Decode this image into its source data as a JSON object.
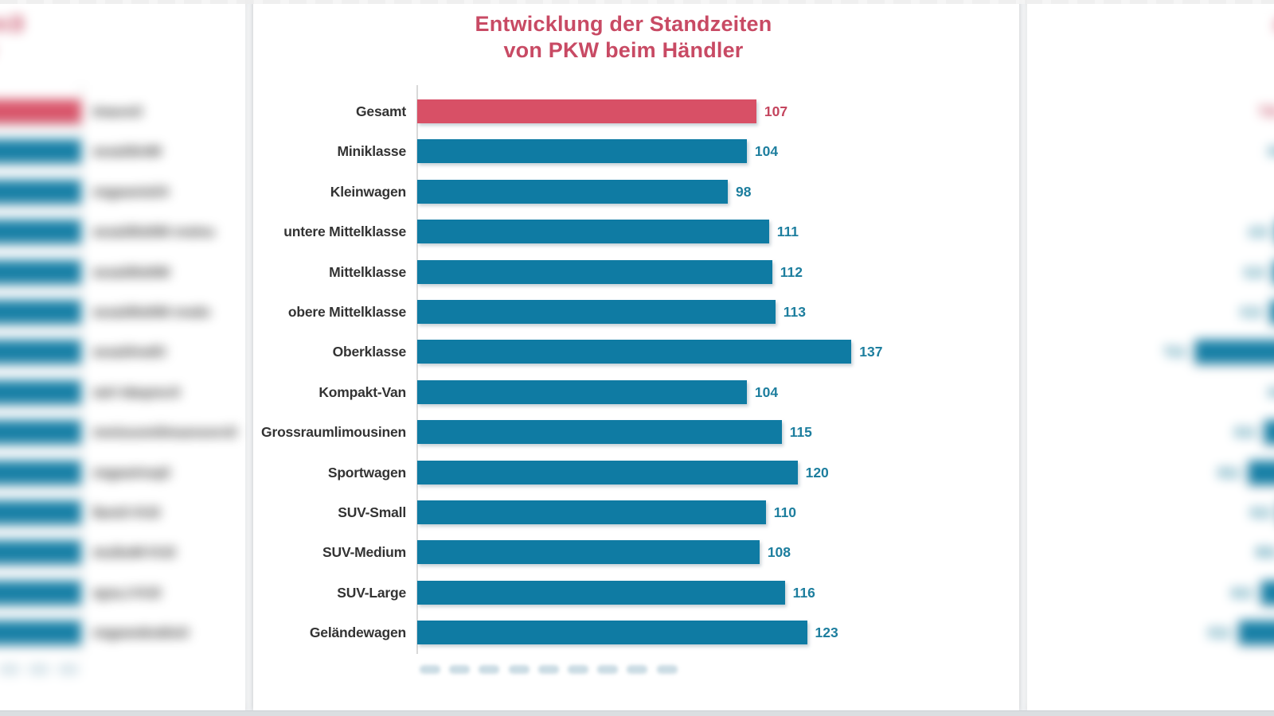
{
  "page": {
    "top_strip_color": "#ededed",
    "bottom_strip_color": "#dbdee1",
    "background": "#eef0f2"
  },
  "chart_data": {
    "type": "bar",
    "orientation": "horizontal",
    "title": "Entwicklung der Standzeiten von PKW beim Händler",
    "title_line1": "Entwicklung der Standzeiten",
    "title_line2": "von PKW beim Händler",
    "categories": [
      "Gesamt",
      "Miniklasse",
      "Kleinwagen",
      "untere Mittelklasse",
      "Mittelklasse",
      "obere Mittelklasse",
      "Oberklasse",
      "Kompakt-Van",
      "Grossraumlimousinen",
      "Sportwagen",
      "SUV-Small",
      "SUV-Medium",
      "SUV-Large",
      "Geländewagen"
    ],
    "values": [
      107,
      104,
      98,
      111,
      112,
      113,
      137,
      104,
      115,
      120,
      110,
      108,
      116,
      123
    ],
    "highlight_index": 0,
    "xlim": [
      0,
      140
    ],
    "value_axis_visible": false,
    "legend": "none",
    "colors": {
      "bar": "#0f7ba3",
      "bar_highlight": "#d85066",
      "value_label": "#1d7e9e",
      "value_label_highlight": "#c4455e",
      "category_label": "#333333",
      "title": "#c84a64",
      "axis_line": "#d9d9d9"
    }
  },
  "decor": {
    "blurred_axis_label_slots": 9,
    "side_previews_blurred": true
  }
}
